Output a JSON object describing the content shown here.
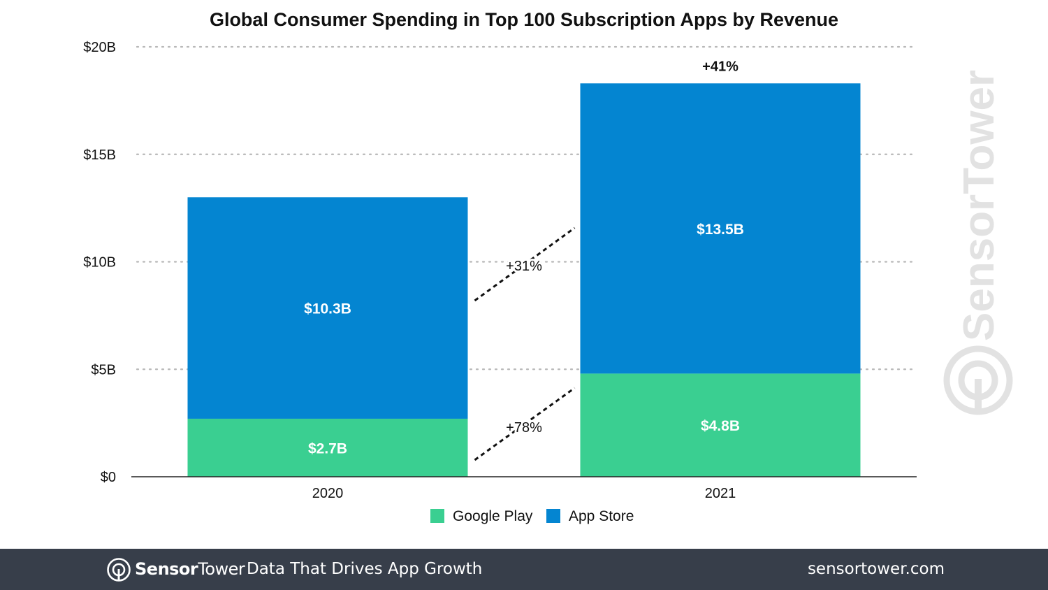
{
  "colors": {
    "google_play": "#3acf91",
    "app_store": "#0485d1",
    "footer_bg": "#373e4a",
    "watermark": "#e2e2e2"
  },
  "chart_data": {
    "type": "bar",
    "stacked": true,
    "title": "Global Consumer Spending in Top 100 Subscription Apps by Revenue",
    "xlabel": "",
    "ylabel": "",
    "categories": [
      "2020",
      "2021"
    ],
    "series": [
      {
        "name": "Google Play",
        "values": [
          2.7,
          4.8
        ],
        "labels": [
          "$2.7B",
          "$4.8B"
        ],
        "color": "#3acf91"
      },
      {
        "name": "App Store",
        "values": [
          10.3,
          13.5
        ],
        "labels": [
          "$10.3B",
          "$13.5B"
        ],
        "color": "#0485d1"
      }
    ],
    "ylim": [
      0,
      20
    ],
    "yticks": [
      0,
      5,
      10,
      15,
      20
    ],
    "ytick_labels": [
      "$0",
      "$5B",
      "$10B",
      "$15B",
      "$20B"
    ],
    "grid": true,
    "legend": "bottom-center",
    "annotations": {
      "total_growth": "+41%",
      "app_store_growth": "+31%",
      "google_play_growth": "+78%"
    }
  },
  "watermark": {
    "text": "SensorTower",
    "icon": "sensortower-logo-icon"
  },
  "footer": {
    "brand_bold": "Sensor",
    "brand_light": "Tower",
    "tagline": "Data That Drives App Growth",
    "url": "sensortower.com",
    "icon": "sensortower-logo-icon"
  }
}
